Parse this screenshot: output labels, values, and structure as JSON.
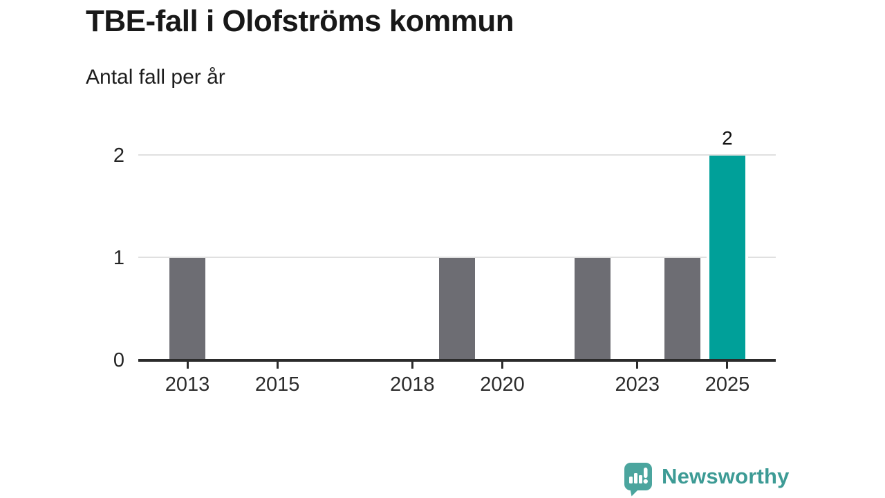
{
  "header": {
    "title": "TBE-fall i Olofströms kommun",
    "subtitle": "Antal fall per år"
  },
  "chart_data": {
    "type": "bar",
    "title": "TBE-fall i Olofströms kommun",
    "subtitle": "Antal fall per år",
    "x": [
      2012,
      2013,
      2014,
      2015,
      2016,
      2017,
      2018,
      2019,
      2020,
      2021,
      2022,
      2023,
      2024,
      2025
    ],
    "values": [
      0,
      1,
      0,
      0,
      0,
      0,
      0,
      1,
      0,
      0,
      1,
      0,
      1,
      2
    ],
    "highlight_x": 2025,
    "value_labels": [
      {
        "x": 2025,
        "text": "2"
      }
    ],
    "x_ticks": [
      "2013",
      "2015",
      "2018",
      "2020",
      "2023",
      "2025"
    ],
    "y_ticks": [
      "0",
      "1",
      "2"
    ],
    "ylim": [
      0,
      2
    ],
    "x_domain": [
      2012,
      2025
    ],
    "grid": "horizontal",
    "legend": "none",
    "colors": {
      "bar_default": "#6d6d73",
      "bar_highlight": "#00a099",
      "grid": "#e0e0e0",
      "axis": "#2b2b2b"
    }
  },
  "branding": {
    "logo_text": "Newsworthy",
    "logo_icon": "newsworthy-speech-bubble-bar-chart-icon",
    "logo_text_color": "#3d9b95",
    "logo_icon_color": "#4ba59e"
  }
}
